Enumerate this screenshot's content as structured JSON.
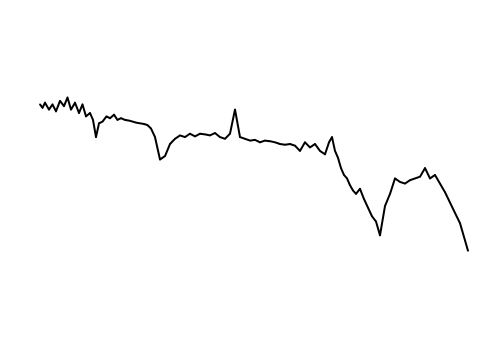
{
  "chart_data": {
    "type": "line",
    "title": "",
    "xlabel": "",
    "ylabel": "",
    "x_tick_labels": [
      "",
      "",
      "",
      "",
      "",
      "",
      "",
      "",
      "",
      ""
    ],
    "y_tick_labels": [
      "",
      "",
      "",
      "",
      "",
      "",
      "",
      "",
      "",
      ""
    ],
    "xlim": [
      0,
      9
    ],
    "ylim": [
      0,
      9
    ],
    "grid": false,
    "series": [
      {
        "color": "#000000",
        "x": [
          0.0,
          0.05,
          0.1,
          0.18,
          0.25,
          0.32,
          0.4,
          0.48,
          0.55,
          0.62,
          0.7,
          0.78,
          0.85,
          0.92,
          1.0,
          1.06,
          1.12,
          1.18,
          1.25,
          1.33,
          1.4,
          1.48,
          1.55,
          1.62,
          1.7,
          1.78,
          1.85,
          1.92,
          2.0,
          2.08,
          2.15,
          2.22,
          2.3,
          2.4,
          2.5,
          2.6,
          2.7,
          2.8,
          2.9,
          3.0,
          3.1,
          3.2,
          3.3,
          3.4,
          3.5,
          3.6,
          3.7,
          3.8,
          3.9,
          4.0,
          4.1,
          4.2,
          4.3,
          4.4,
          4.5,
          4.6,
          4.7,
          4.8,
          4.9,
          5.0,
          5.1,
          5.2,
          5.3,
          5.4,
          5.5,
          5.6,
          5.7,
          5.78,
          5.84,
          5.9,
          5.96,
          6.02,
          6.08,
          6.14,
          6.2,
          6.26,
          6.32,
          6.4,
          6.48,
          6.56,
          6.64,
          6.72,
          6.8,
          6.9,
          7.0,
          7.1,
          7.2,
          7.3,
          7.4,
          7.5,
          7.6,
          7.7,
          7.8,
          7.9,
          8.0,
          8.1,
          8.2,
          8.3,
          8.4,
          8.5,
          8.56
        ],
        "y": [
          6.55,
          6.45,
          6.6,
          6.4,
          6.55,
          6.35,
          6.65,
          6.5,
          6.75,
          6.4,
          6.6,
          6.3,
          6.55,
          6.2,
          6.3,
          6.1,
          5.6,
          6.0,
          6.05,
          6.2,
          6.15,
          6.25,
          6.1,
          6.15,
          6.1,
          6.08,
          6.05,
          6.02,
          6.0,
          5.98,
          5.95,
          5.85,
          5.6,
          4.95,
          5.05,
          5.4,
          5.55,
          5.65,
          5.6,
          5.7,
          5.62,
          5.7,
          5.68,
          5.65,
          5.72,
          5.6,
          5.55,
          5.7,
          6.4,
          5.6,
          5.55,
          5.5,
          5.52,
          5.45,
          5.5,
          5.48,
          5.45,
          5.4,
          5.38,
          5.4,
          5.35,
          5.2,
          5.45,
          5.3,
          5.4,
          5.2,
          5.1,
          5.45,
          5.6,
          5.2,
          5.0,
          4.7,
          4.5,
          4.4,
          4.2,
          4.05,
          3.95,
          4.1,
          3.8,
          3.55,
          3.3,
          3.15,
          2.75,
          3.6,
          3.95,
          4.4,
          4.3,
          4.25,
          4.35,
          4.4,
          4.45,
          4.7,
          4.4,
          4.5,
          4.25,
          4.0,
          3.7,
          3.4,
          3.1,
          2.6,
          2.3
        ]
      }
    ]
  }
}
